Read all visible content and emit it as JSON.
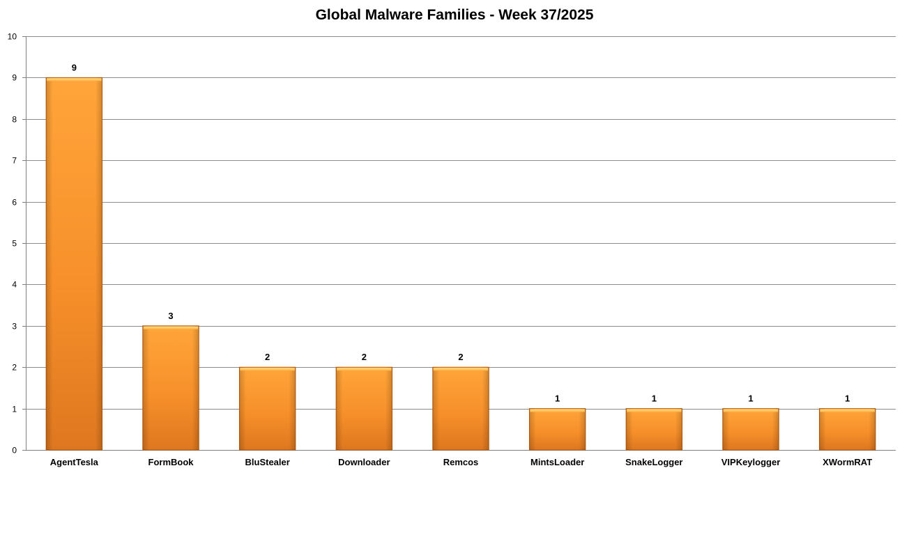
{
  "chart_data": {
    "type": "bar",
    "title": "Global Malware Families - Week 37/2025",
    "xlabel": "",
    "ylabel": "",
    "categories": [
      "AgentTesla",
      "FormBook",
      "BluStealer",
      "Downloader",
      "Remcos",
      "MintsLoader",
      "SnakeLogger",
      "VIPKeylogger",
      "XWormRAT"
    ],
    "values": [
      9,
      3,
      2,
      2,
      2,
      1,
      1,
      1,
      1
    ],
    "ylim": [
      0,
      10
    ],
    "yticks": [
      0,
      1,
      2,
      3,
      4,
      5,
      6,
      7,
      8,
      9,
      10
    ],
    "grid": true,
    "legend": "none",
    "data_labels": true,
    "colors": {
      "bar_light": "#ffa333",
      "bar_dark": "#e07a1f",
      "bar_edge": "#b85c10",
      "gridline": "#8c8c8c",
      "axis": "#7f7f7f"
    }
  }
}
